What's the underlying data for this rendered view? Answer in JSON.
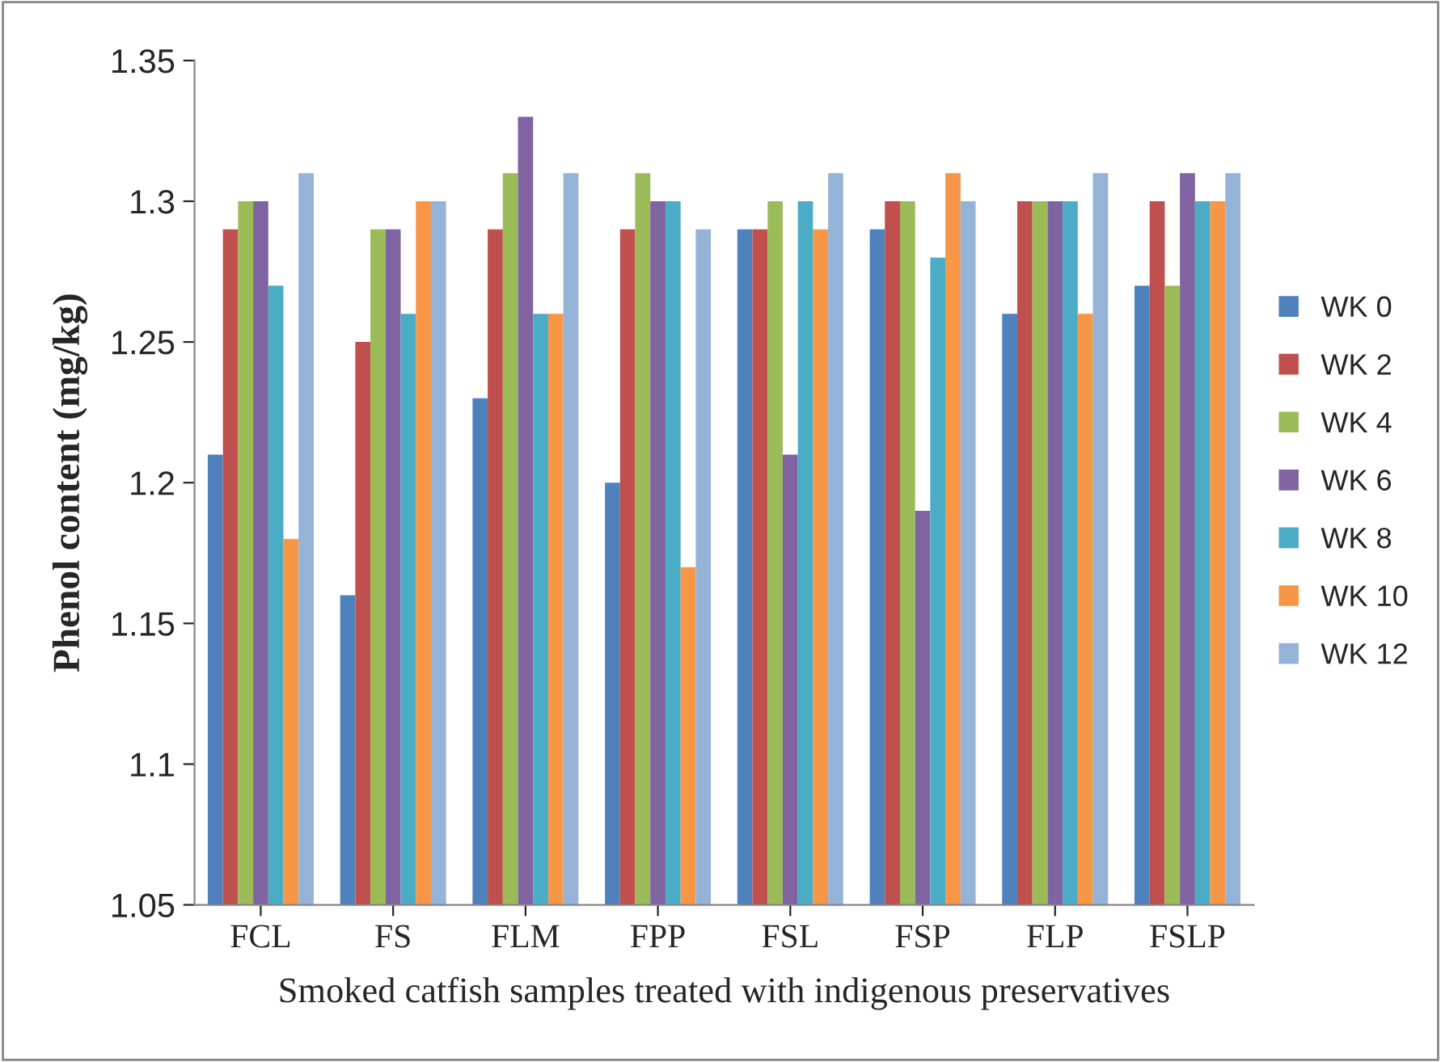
{
  "chart_data": {
    "type": "bar",
    "xlabel": "Smoked catfish samples treated with indigenous preservatives",
    "ylabel": "Phenol content (mg/kg)",
    "categories": [
      "FCL",
      "FS",
      "FLM",
      "FPP",
      "FSL",
      "FSP",
      "FLP",
      "FSLP"
    ],
    "series": [
      {
        "name": "WK 0",
        "color": "#4f81bd",
        "values": [
          1.21,
          1.16,
          1.23,
          1.2,
          1.29,
          1.29,
          1.26,
          1.27
        ]
      },
      {
        "name": "WK 2",
        "color": "#c0504d",
        "values": [
          1.29,
          1.25,
          1.29,
          1.29,
          1.29,
          1.3,
          1.3,
          1.3
        ]
      },
      {
        "name": "WK 4",
        "color": "#9bbb59",
        "values": [
          1.3,
          1.29,
          1.31,
          1.31,
          1.3,
          1.3,
          1.3,
          1.27
        ]
      },
      {
        "name": "WK 6",
        "color": "#8064a2",
        "values": [
          1.3,
          1.29,
          1.33,
          1.3,
          1.21,
          1.19,
          1.3,
          1.31
        ]
      },
      {
        "name": "WK 8",
        "color": "#4bacc6",
        "values": [
          1.27,
          1.26,
          1.26,
          1.3,
          1.3,
          1.28,
          1.3,
          1.3
        ]
      },
      {
        "name": "WK 10",
        "color": "#f79646",
        "values": [
          1.18,
          1.3,
          1.26,
          1.17,
          1.29,
          1.31,
          1.26,
          1.3
        ]
      },
      {
        "name": "WK 12",
        "color": "#95b3d7",
        "values": [
          1.31,
          1.3,
          1.31,
          1.29,
          1.31,
          1.3,
          1.31,
          1.31
        ]
      }
    ],
    "ylim": [
      1.05,
      1.35
    ],
    "yticks": [
      1.05,
      1.1,
      1.15,
      1.2,
      1.25,
      1.3,
      1.35
    ],
    "grid": false,
    "legend": "right"
  }
}
